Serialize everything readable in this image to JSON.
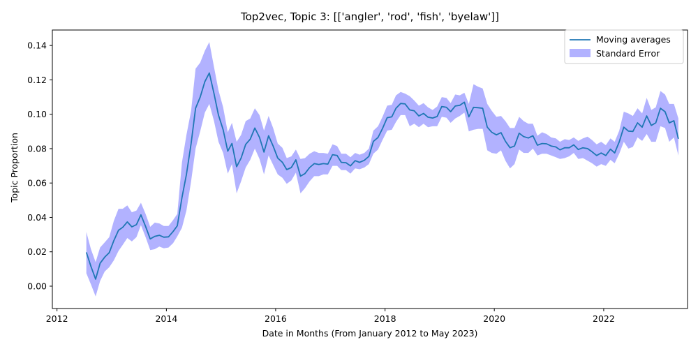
{
  "chart_data": {
    "type": "line",
    "title": "Top2vec, Topic 3: [['angler', 'rod', 'fish', 'byelaw']]",
    "xlabel": "Date in Months (From January 2012 to May 2023)",
    "ylabel": "Topic Proportion",
    "xlim": [
      "2011-12-01",
      "2023-07-15"
    ],
    "ylim": [
      -0.013,
      0.149
    ],
    "x_ticks": [
      "2012-01-01",
      "2014-01-01",
      "2016-01-01",
      "2018-01-01",
      "2020-01-01",
      "2022-01-01"
    ],
    "x_tick_labels": [
      "2012",
      "2014",
      "2016",
      "2018",
      "2020",
      "2022"
    ],
    "y_ticks": [
      0.0,
      0.02,
      0.04,
      0.06,
      0.08,
      0.1,
      0.12,
      0.14
    ],
    "y_tick_labels": [
      "0.00",
      "0.02",
      "0.04",
      "0.06",
      "0.08",
      "0.10",
      "0.12",
      "0.14"
    ],
    "legend_position": "top-right",
    "grid": false,
    "colors": {
      "line": "#1f77b4",
      "band": "#0000ff",
      "band_opacity": 0.3
    },
    "x": [
      "2012-07",
      "2012-08",
      "2012-09",
      "2012-10",
      "2012-11",
      "2012-12",
      "2013-01",
      "2013-02",
      "2013-03",
      "2013-04",
      "2013-05",
      "2013-06",
      "2013-07",
      "2013-08",
      "2013-09",
      "2013-10",
      "2013-11",
      "2013-12",
      "2014-01",
      "2014-02",
      "2014-03",
      "2014-04",
      "2014-05",
      "2014-06",
      "2014-07",
      "2014-08",
      "2014-09",
      "2014-10",
      "2014-11",
      "2014-12",
      "2015-01",
      "2015-02",
      "2015-03",
      "2015-04",
      "2015-05",
      "2015-06",
      "2015-07",
      "2015-08",
      "2015-09",
      "2015-10",
      "2015-11",
      "2015-12",
      "2016-01",
      "2016-02",
      "2016-03",
      "2016-04",
      "2016-05",
      "2016-06",
      "2016-07",
      "2016-08",
      "2016-09",
      "2016-10",
      "2016-11",
      "2016-12",
      "2017-01",
      "2017-02",
      "2017-03",
      "2017-04",
      "2017-05",
      "2017-06",
      "2017-07",
      "2017-08",
      "2017-09",
      "2017-10",
      "2017-11",
      "2017-12",
      "2018-01",
      "2018-02",
      "2018-03",
      "2018-04",
      "2018-05",
      "2018-06",
      "2018-07",
      "2018-08",
      "2018-09",
      "2018-10",
      "2018-11",
      "2018-12",
      "2019-01",
      "2019-02",
      "2019-03",
      "2019-04",
      "2019-05",
      "2019-06",
      "2019-07",
      "2019-08",
      "2019-09",
      "2019-10",
      "2019-11",
      "2019-12",
      "2020-01",
      "2020-02",
      "2020-03",
      "2020-04",
      "2020-05",
      "2020-06",
      "2020-07",
      "2020-08",
      "2020-09",
      "2020-10",
      "2020-11",
      "2020-12",
      "2021-01",
      "2021-02",
      "2021-03",
      "2021-04",
      "2021-05",
      "2021-06",
      "2021-07",
      "2021-08",
      "2021-09",
      "2021-10",
      "2021-11",
      "2021-12",
      "2022-01",
      "2022-02",
      "2022-03",
      "2022-04",
      "2022-05",
      "2022-06",
      "2022-07",
      "2022-08",
      "2022-09",
      "2022-10",
      "2022-11",
      "2022-12",
      "2023-01",
      "2023-02",
      "2023-03",
      "2023-04",
      "2023-05"
    ],
    "series": [
      {
        "name": "Moving averages",
        "values": [
          0.0197,
          0.0115,
          0.0041,
          0.0133,
          0.0169,
          0.0195,
          0.0265,
          0.0325,
          0.0342,
          0.0374,
          0.0345,
          0.0358,
          0.0415,
          0.0347,
          0.0275,
          0.029,
          0.0296,
          0.0285,
          0.0287,
          0.0318,
          0.0351,
          0.0515,
          0.065,
          0.083,
          0.1035,
          0.11,
          0.119,
          0.124,
          0.112,
          0.0995,
          0.091,
          0.0785,
          0.083,
          0.0695,
          0.0745,
          0.0825,
          0.0855,
          0.092,
          0.0865,
          0.078,
          0.0875,
          0.0815,
          0.0745,
          0.072,
          0.0678,
          0.069,
          0.0735,
          0.064,
          0.0655,
          0.069,
          0.0713,
          0.0708,
          0.0713,
          0.071,
          0.0765,
          0.076,
          0.072,
          0.0718,
          0.07,
          0.073,
          0.072,
          0.0732,
          0.0755,
          0.0842,
          0.0865,
          0.0917,
          0.098,
          0.0985,
          0.1035,
          0.1063,
          0.106,
          0.1025,
          0.102,
          0.099,
          0.1005,
          0.0983,
          0.0978,
          0.0987,
          0.1045,
          0.104,
          0.1015,
          0.1048,
          0.1052,
          0.107,
          0.0985,
          0.104,
          0.1038,
          0.1035,
          0.0925,
          0.0895,
          0.088,
          0.0893,
          0.0843,
          0.0805,
          0.0815,
          0.089,
          0.087,
          0.0862,
          0.0875,
          0.082,
          0.083,
          0.0828,
          0.0815,
          0.081,
          0.0793,
          0.0805,
          0.0805,
          0.0822,
          0.0795,
          0.0805,
          0.08,
          0.0782,
          0.076,
          0.0775,
          0.076,
          0.0797,
          0.0775,
          0.084,
          0.0925,
          0.0902,
          0.09,
          0.095,
          0.0925,
          0.099,
          0.0935,
          0.095,
          0.1035,
          0.1015,
          0.095,
          0.0962,
          0.0857
        ]
      },
      {
        "name": "Standard Error",
        "upper": [
          0.0315,
          0.0215,
          0.014,
          0.0225,
          0.0255,
          0.0285,
          0.038,
          0.045,
          0.045,
          0.047,
          0.043,
          0.044,
          0.0485,
          0.042,
          0.0345,
          0.037,
          0.0365,
          0.035,
          0.035,
          0.0385,
          0.042,
          0.072,
          0.088,
          0.102,
          0.1265,
          0.13,
          0.137,
          0.142,
          0.1275,
          0.114,
          0.104,
          0.0895,
          0.095,
          0.084,
          0.088,
          0.096,
          0.0975,
          0.1035,
          0.0995,
          0.0905,
          0.099,
          0.092,
          0.083,
          0.0805,
          0.0745,
          0.0755,
          0.0795,
          0.074,
          0.0745,
          0.077,
          0.0785,
          0.0775,
          0.0775,
          0.077,
          0.0825,
          0.0815,
          0.077,
          0.077,
          0.075,
          0.0775,
          0.0765,
          0.0775,
          0.08,
          0.0905,
          0.093,
          0.0985,
          0.105,
          0.1055,
          0.111,
          0.113,
          0.112,
          0.1105,
          0.108,
          0.105,
          0.1065,
          0.104,
          0.1025,
          0.1045,
          0.11,
          0.1095,
          0.1065,
          0.1115,
          0.111,
          0.1125,
          0.106,
          0.1175,
          0.116,
          0.115,
          0.106,
          0.102,
          0.0985,
          0.099,
          0.096,
          0.092,
          0.092,
          0.0985,
          0.096,
          0.0945,
          0.0945,
          0.0875,
          0.0895,
          0.0885,
          0.0865,
          0.086,
          0.084,
          0.0855,
          0.085,
          0.0865,
          0.0845,
          0.086,
          0.087,
          0.085,
          0.0825,
          0.084,
          0.082,
          0.086,
          0.084,
          0.0905,
          0.1015,
          0.1005,
          0.099,
          0.1035,
          0.1005,
          0.1095,
          0.1025,
          0.104,
          0.1135,
          0.1115,
          0.106,
          0.106,
          0.0975
        ],
        "lower": [
          0.0075,
          0.001,
          -0.006,
          0.003,
          0.0085,
          0.011,
          0.015,
          0.0205,
          0.024,
          0.028,
          0.026,
          0.0285,
          0.0355,
          0.0285,
          0.021,
          0.0215,
          0.023,
          0.022,
          0.0225,
          0.025,
          0.029,
          0.034,
          0.044,
          0.061,
          0.08,
          0.09,
          0.101,
          0.106,
          0.096,
          0.084,
          0.0775,
          0.0655,
          0.071,
          0.054,
          0.061,
          0.069,
          0.0735,
          0.08,
          0.074,
          0.065,
          0.076,
          0.0705,
          0.065,
          0.063,
          0.0595,
          0.0615,
          0.066,
          0.054,
          0.057,
          0.061,
          0.064,
          0.064,
          0.065,
          0.065,
          0.07,
          0.07,
          0.0675,
          0.0675,
          0.0655,
          0.0685,
          0.068,
          0.069,
          0.071,
          0.077,
          0.0795,
          0.085,
          0.0905,
          0.091,
          0.0955,
          0.0995,
          0.0995,
          0.093,
          0.0945,
          0.0925,
          0.0945,
          0.0925,
          0.093,
          0.093,
          0.0985,
          0.098,
          0.095,
          0.0975,
          0.099,
          0.101,
          0.09,
          0.091,
          0.0915,
          0.0915,
          0.079,
          0.0775,
          0.077,
          0.079,
          0.073,
          0.0685,
          0.071,
          0.0795,
          0.0775,
          0.0775,
          0.08,
          0.076,
          0.077,
          0.077,
          0.076,
          0.075,
          0.074,
          0.0745,
          0.0755,
          0.0775,
          0.074,
          0.0745,
          0.073,
          0.0715,
          0.0695,
          0.071,
          0.07,
          0.0735,
          0.0715,
          0.077,
          0.084,
          0.08,
          0.081,
          0.0865,
          0.0845,
          0.0885,
          0.084,
          0.084,
          0.093,
          0.092,
          0.084,
          0.0865,
          0.076
        ]
      }
    ]
  }
}
